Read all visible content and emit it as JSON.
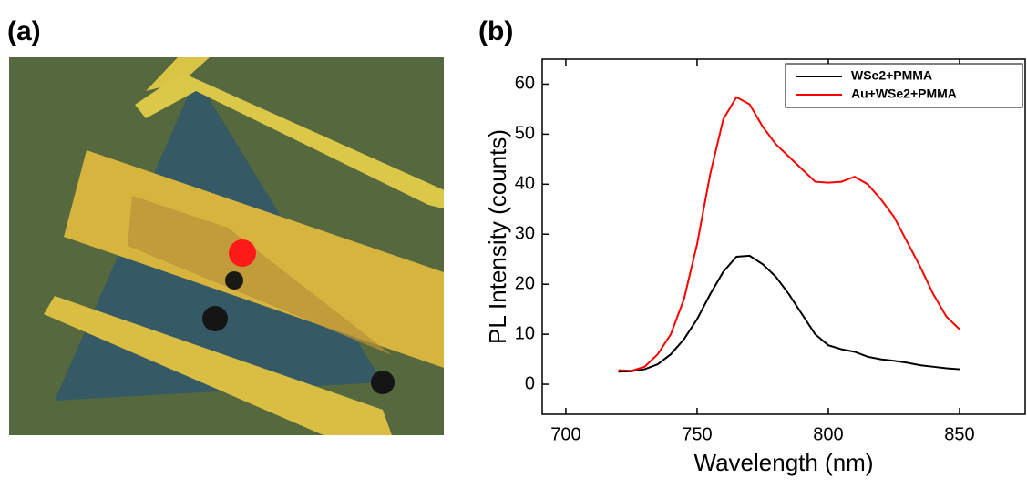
{
  "panel_a": {
    "label": "(a)"
  },
  "chart_data": {
    "type": "line",
    "panel_label": "(b)",
    "x_label": "Wavelength (nm)",
    "y_label": "PL Intensity (counts)",
    "x": [
      720,
      725,
      730,
      735,
      740,
      745,
      750,
      755,
      760,
      765,
      770,
      775,
      780,
      785,
      790,
      795,
      800,
      805,
      810,
      815,
      820,
      825,
      830,
      835,
      840,
      845,
      850
    ],
    "series": [
      {
        "name": "WSe2+PMMA",
        "color": "#000000",
        "values": [
          2.5,
          2.6,
          3,
          4,
          6,
          9,
          13,
          18,
          22.5,
          25.5,
          25.7,
          24,
          21.5,
          18,
          14,
          10,
          7.8,
          7,
          6.5,
          5.5,
          5,
          4.7,
          4.3,
          3.8,
          3.5,
          3.2,
          3
        ]
      },
      {
        "name": "Au+WSe2+PMMA",
        "color": "#ff0000",
        "values": [
          2.8,
          2.7,
          3.5,
          6,
          10,
          17,
          28,
          42,
          53,
          57.4,
          56,
          51.5,
          48,
          45.5,
          43,
          40.5,
          40.3,
          40.5,
          41.5,
          40,
          37,
          33.5,
          28.5,
          23.5,
          18,
          13.5,
          11
        ]
      }
    ],
    "xlim": [
      691,
      875
    ],
    "xticks": [
      700,
      750,
      800,
      850
    ],
    "ylim": [
      -6,
      65
    ],
    "yticks": [
      0,
      10,
      20,
      30,
      40,
      50,
      60
    ],
    "legend": "upper-right"
  }
}
